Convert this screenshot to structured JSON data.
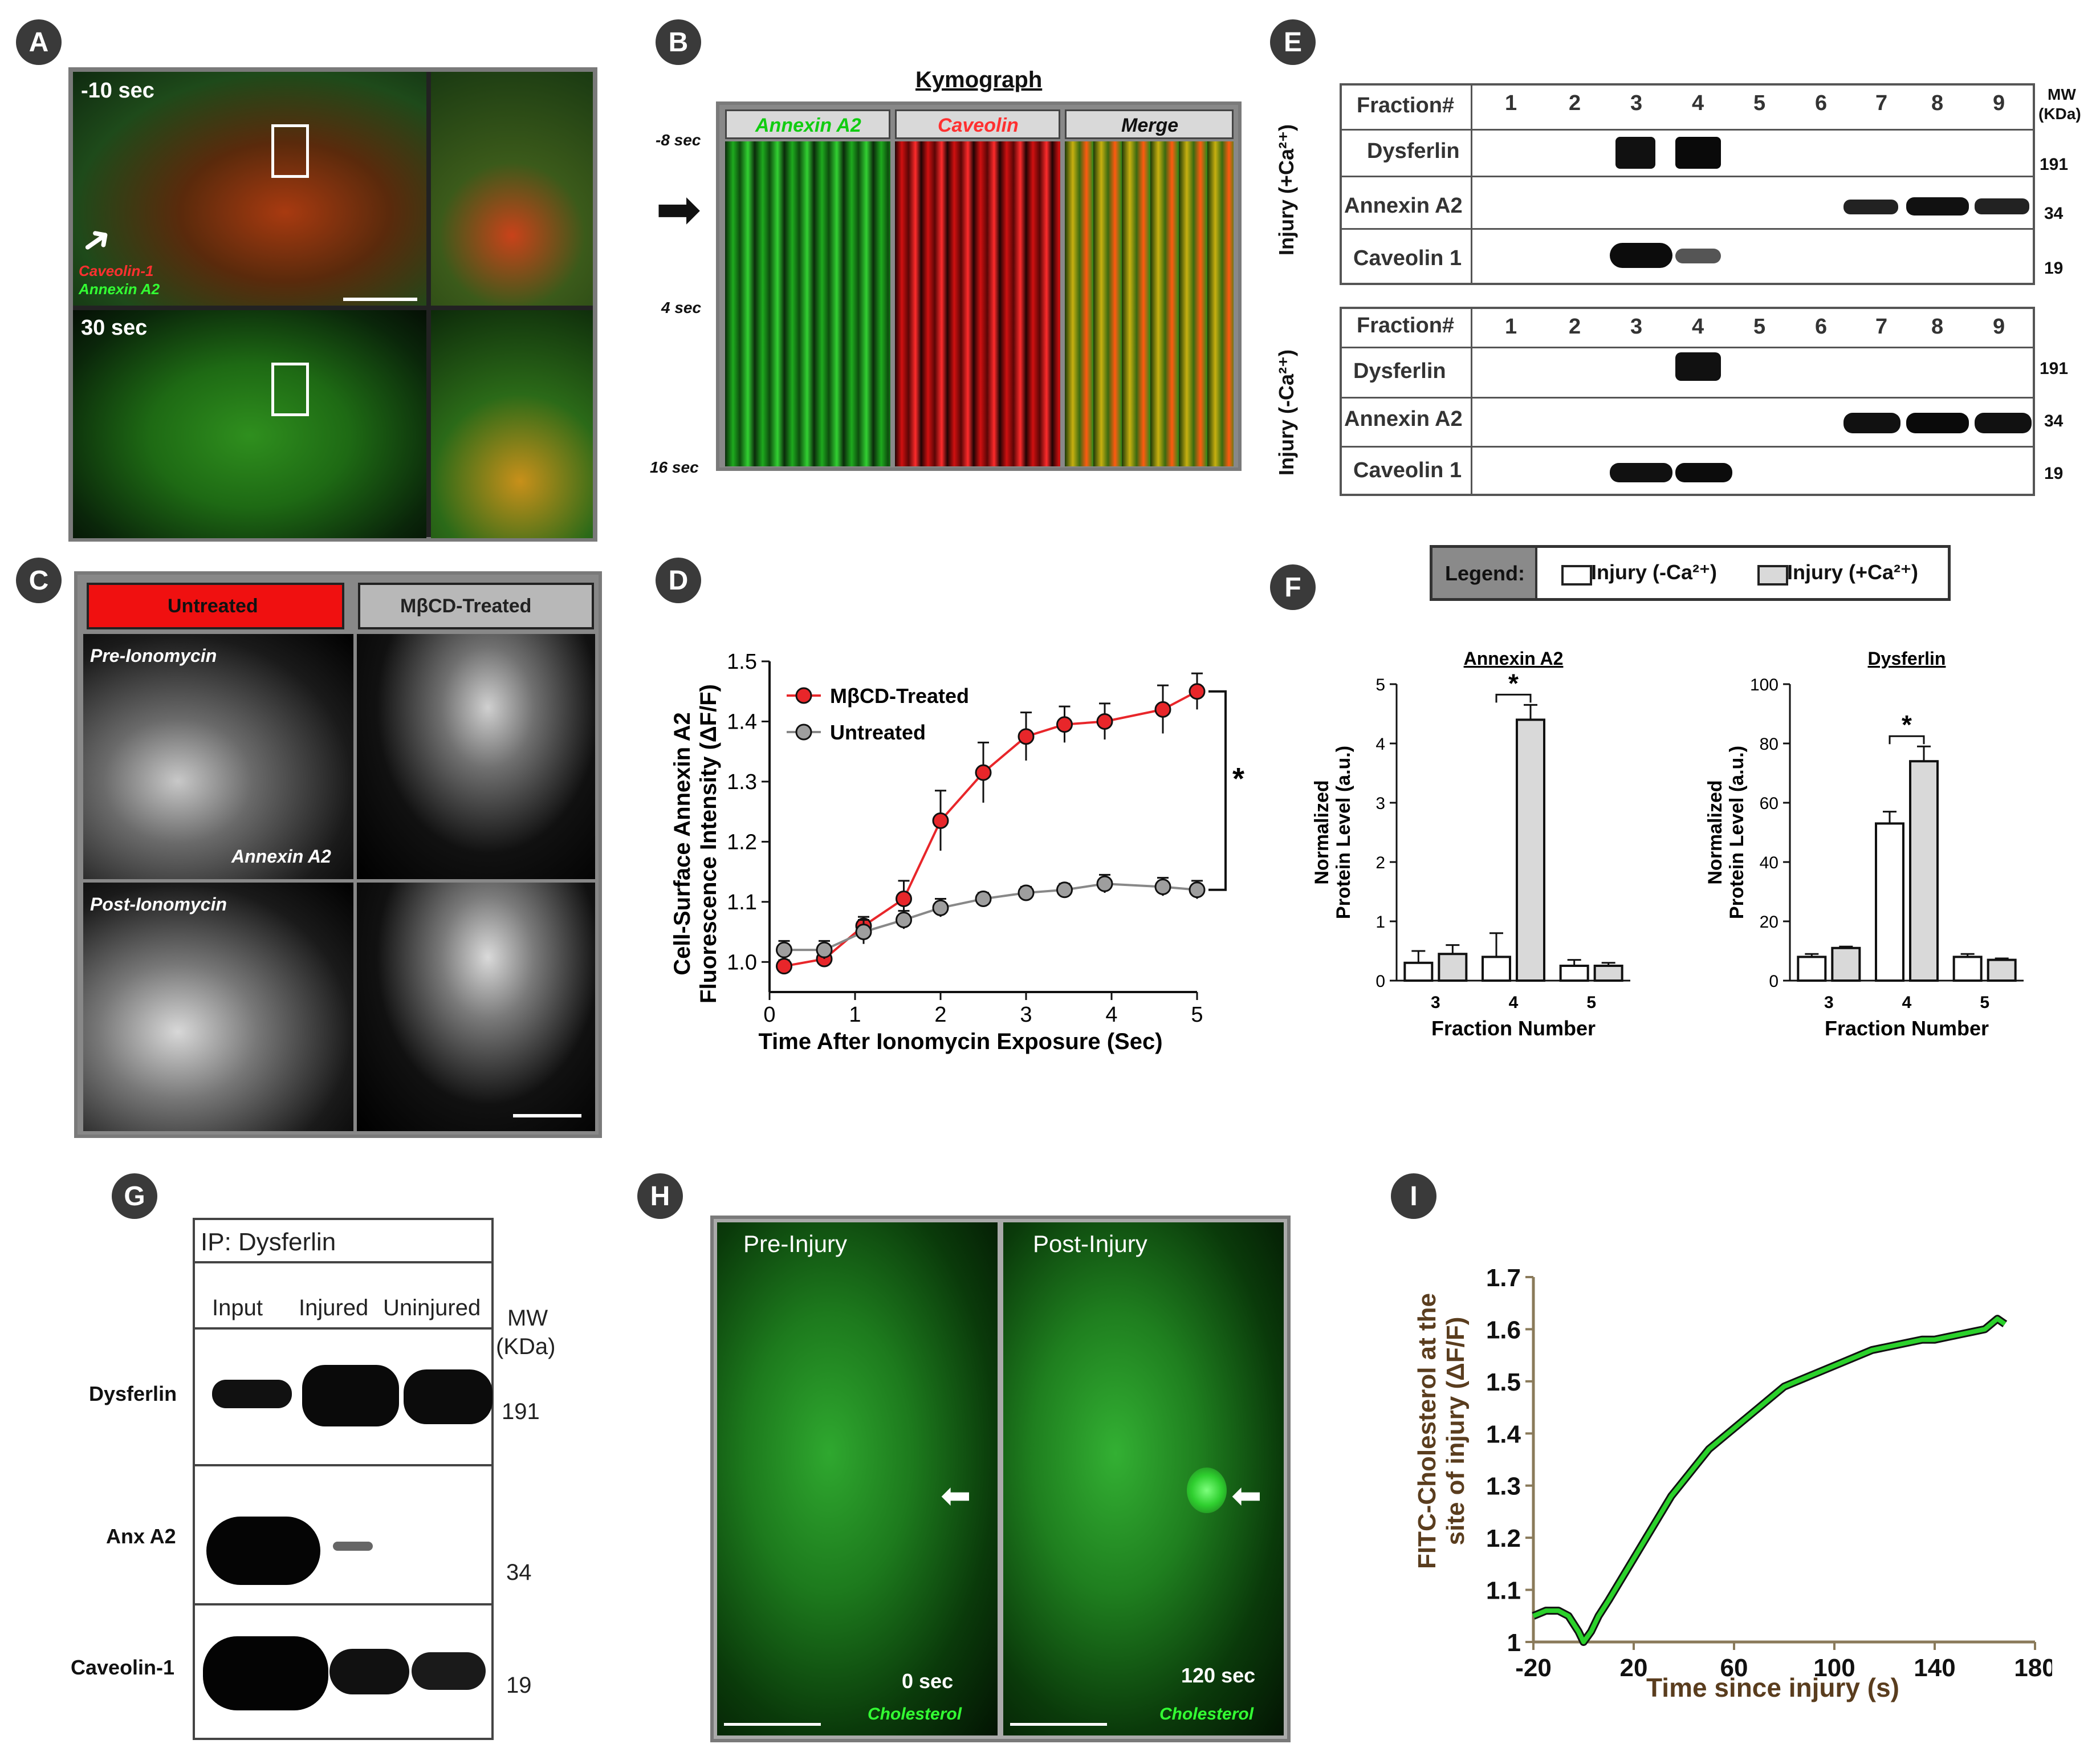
{
  "panels": {
    "A": {
      "badge": "A",
      "top_time": "-10 sec",
      "bottom_time": "30 sec",
      "legend_red": "Caveolin-1",
      "legend_green": "Annexin A2"
    },
    "B": {
      "badge": "B",
      "title": "Kymograph",
      "lanes": [
        "Annexin A2",
        "Caveolin",
        "Merge"
      ],
      "time_labels": [
        "-8 sec",
        "4 sec",
        "16 sec"
      ]
    },
    "C": {
      "badge": "C",
      "headers": [
        "Untreated",
        "MβCD-Treated"
      ],
      "row_labels": [
        "Pre-Ionomycin",
        "Post-Ionomycin"
      ],
      "inset_label": "Annexin A2"
    },
    "D": {
      "badge": "D",
      "ylabel_line1": "Cell-Surface Annexin A2",
      "ylabel_line2": "Fluorescence Intensity (ΔF/F)",
      "xlabel": "Time After Ionomycin Exposure (Sec)",
      "significance": "*"
    },
    "E": {
      "badge": "E",
      "mw_header": "MW",
      "mw_unit": "(KDa)",
      "fraction_header": "Fraction#",
      "fractions": [
        "1",
        "2",
        "3",
        "4",
        "5",
        "6",
        "7",
        "8",
        "9"
      ],
      "blots": [
        {
          "condition": "Injury (+Ca²⁺)",
          "rows": [
            "Dysferlin",
            "Annexin A2",
            "Caveolin 1"
          ],
          "mw": [
            "191",
            "34",
            "19"
          ]
        },
        {
          "condition": "Injury (-Ca²⁺)",
          "rows": [
            "Dysferlin",
            "Annexin A2",
            "Caveolin 1"
          ],
          "mw": [
            "191",
            "34",
            "19"
          ]
        }
      ]
    },
    "F": {
      "badge": "F",
      "legend_title": "Legend:",
      "legend_items": [
        "Injury (-Ca²⁺)",
        "Injury (+Ca²⁺)"
      ],
      "ylabel_line1": "Normalized",
      "ylabel_line2": "Protein Level (a.u.)",
      "xlabel": "Fraction Number",
      "significance": "*"
    },
    "G": {
      "badge": "G",
      "title": "IP: Dysferlin",
      "columns": [
        "Input",
        "Injured",
        "Uninjured"
      ],
      "mw_header": "MW",
      "mw_unit": "(KDa)",
      "rows": [
        "Dysferlin",
        "Anx A2",
        "Caveolin-1"
      ],
      "mw": [
        "191",
        "34",
        "19"
      ]
    },
    "H": {
      "badge": "H",
      "left_title": "Pre-Injury",
      "right_title": "Post-Injury",
      "left_time": "0 sec",
      "right_time": "120 sec",
      "stain": "Cholesterol"
    },
    "I": {
      "badge": "I",
      "ylabel_line1": "FITC-Cholesterol at the",
      "ylabel_line2": "site of injury (ΔF/F)",
      "xlabel": "Time since injury (s)"
    }
  },
  "colors": {
    "red": "#e8262a",
    "green": "#2bd12b",
    "gray_bar": "#d9d9d9",
    "frame": "#7a7a7a",
    "badge": "#3a3a3a"
  },
  "chart_data": [
    {
      "panel": "D",
      "type": "line",
      "x": [
        0.17,
        0.64,
        1.1,
        1.57,
        2.0,
        2.5,
        3.0,
        3.45,
        3.92,
        4.6,
        5.0
      ],
      "series": [
        {
          "name": "MβCD-Treated",
          "color": "#e8262a",
          "values": [
            0.993,
            1.005,
            1.06,
            1.105,
            1.235,
            1.315,
            1.375,
            1.395,
            1.4,
            1.42,
            1.45
          ],
          "errors": [
            0.01,
            0.01,
            0.015,
            0.03,
            0.05,
            0.05,
            0.04,
            0.03,
            0.03,
            0.04,
            0.03
          ]
        },
        {
          "name": "Untreated",
          "color": "#9e9e9e",
          "values": [
            1.02,
            1.02,
            1.05,
            1.07,
            1.09,
            1.105,
            1.115,
            1.12,
            1.13,
            1.125,
            1.12
          ],
          "errors": [
            0.015,
            0.015,
            0.02,
            0.015,
            0.015,
            0.01,
            0.01,
            0.01,
            0.015,
            0.015,
            0.015
          ]
        }
      ],
      "xlim": [
        0,
        5
      ],
      "ylim": [
        0.95,
        1.5
      ],
      "xticks": [
        "0",
        "1",
        "2",
        "3",
        "4",
        "5"
      ],
      "yticks": [
        "1.0",
        "1.1",
        "1.2",
        "1.3",
        "1.4",
        "1.5"
      ],
      "legend": "top-left"
    },
    {
      "panel": "F-left",
      "type": "bar",
      "title": "Annexin A2",
      "categories": [
        "3",
        "4",
        "5"
      ],
      "series": [
        {
          "name": "Injury (-Ca²⁺)",
          "values": [
            0.3,
            0.4,
            0.25
          ],
          "errors": [
            0.2,
            0.4,
            0.1
          ]
        },
        {
          "name": "Injury (+Ca²⁺)",
          "values": [
            0.45,
            4.4,
            0.25
          ],
          "errors": [
            0.15,
            0.25,
            0.05
          ]
        }
      ],
      "ylim": [
        0,
        5
      ],
      "yticks": [
        "0",
        "1",
        "2",
        "3",
        "4",
        "5"
      ]
    },
    {
      "panel": "F-right",
      "type": "bar",
      "title": "Dysferlin",
      "categories": [
        "3",
        "4",
        "5"
      ],
      "series": [
        {
          "name": "Injury (-Ca²⁺)",
          "values": [
            8,
            53,
            8
          ],
          "errors": [
            1,
            4,
            1
          ]
        },
        {
          "name": "Injury (+Ca²⁺)",
          "values": [
            11,
            74,
            7
          ],
          "errors": [
            0.5,
            5,
            0.5
          ]
        }
      ],
      "ylim": [
        0,
        100
      ],
      "yticks": [
        "0",
        "20",
        "40",
        "60",
        "80",
        "100"
      ]
    },
    {
      "panel": "I",
      "type": "line",
      "x": [
        -20,
        -15,
        -10,
        -6,
        -2,
        0,
        3,
        6,
        10,
        15,
        20,
        25,
        30,
        35,
        40,
        45,
        50,
        55,
        60,
        65,
        70,
        75,
        80,
        85,
        90,
        95,
        100,
        105,
        110,
        115,
        120,
        125,
        130,
        135,
        140,
        145,
        150,
        155,
        160,
        165,
        168
      ],
      "series": [
        {
          "name": "",
          "color": "#2bd12b",
          "values": [
            1.05,
            1.06,
            1.06,
            1.05,
            1.02,
            1.0,
            1.02,
            1.05,
            1.08,
            1.12,
            1.16,
            1.2,
            1.24,
            1.28,
            1.31,
            1.34,
            1.37,
            1.39,
            1.41,
            1.43,
            1.45,
            1.47,
            1.49,
            1.5,
            1.51,
            1.52,
            1.53,
            1.54,
            1.55,
            1.56,
            1.565,
            1.57,
            1.575,
            1.58,
            1.58,
            1.585,
            1.59,
            1.595,
            1.6,
            1.62,
            1.61
          ]
        }
      ],
      "xlim": [
        -20,
        180
      ],
      "ylim": [
        1.0,
        1.7
      ],
      "xticks": [
        "-20",
        "20",
        "60",
        "100",
        "140",
        "180"
      ],
      "yticks": [
        "1",
        "1.1",
        "1.2",
        "1.3",
        "1.4",
        "1.5",
        "1.6",
        "1.7"
      ]
    }
  ]
}
